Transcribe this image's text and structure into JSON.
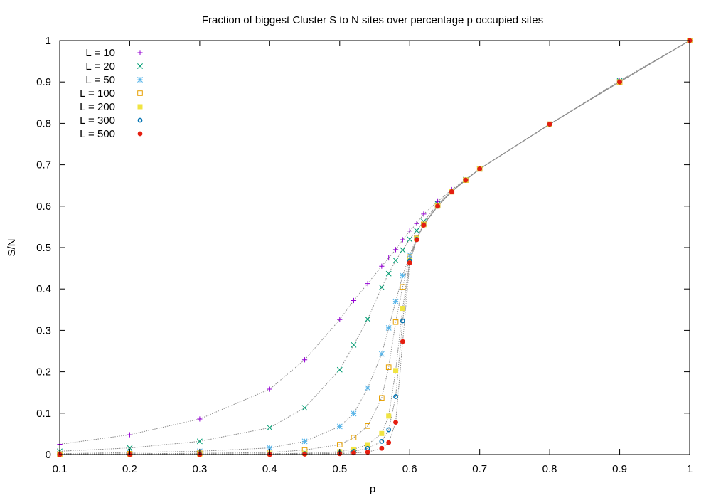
{
  "chart_data": {
    "type": "scatter",
    "title": "Fraction of biggest Cluster S to N sites over percentage p occupied sites",
    "xlabel": "p",
    "ylabel": "S/N",
    "xlim": [
      0.1,
      1
    ],
    "ylim": [
      0,
      1
    ],
    "x_ticks": [
      "0.1",
      "0.2",
      "0.3",
      "0.4",
      "0.5",
      "0.6",
      "0.7",
      "0.8",
      "0.9",
      "1"
    ],
    "y_ticks": [
      "0",
      "0.1",
      "0.2",
      "0.3",
      "0.4",
      "0.5",
      "0.6",
      "0.7",
      "0.8",
      "0.9",
      "1"
    ],
    "grid": false,
    "legend_position": "top-left",
    "lines": "dotted gray connecting points of each series",
    "series": [
      {
        "name": "L = 10",
        "marker": "plus",
        "color": "#9400d3",
        "points": [
          [
            0.1,
            0.025
          ],
          [
            0.2,
            0.048
          ],
          [
            0.3,
            0.086
          ],
          [
            0.4,
            0.158
          ],
          [
            0.45,
            0.229
          ],
          [
            0.5,
            0.326
          ],
          [
            0.52,
            0.372
          ],
          [
            0.54,
            0.413
          ],
          [
            0.56,
            0.455
          ],
          [
            0.57,
            0.475
          ],
          [
            0.58,
            0.495
          ],
          [
            0.59,
            0.519
          ],
          [
            0.6,
            0.54
          ],
          [
            0.61,
            0.558
          ],
          [
            0.62,
            0.581
          ],
          [
            0.64,
            0.611
          ],
          [
            0.66,
            0.64
          ],
          [
            0.68,
            0.664
          ],
          [
            0.7,
            0.69
          ],
          [
            0.8,
            0.797
          ],
          [
            0.9,
            0.902
          ],
          [
            1,
            1
          ]
        ]
      },
      {
        "name": "L = 20",
        "marker": "cross",
        "color": "#009e73",
        "points": [
          [
            0.1,
            0.008
          ],
          [
            0.2,
            0.016
          ],
          [
            0.3,
            0.032
          ],
          [
            0.4,
            0.065
          ],
          [
            0.45,
            0.113
          ],
          [
            0.5,
            0.205
          ],
          [
            0.52,
            0.265
          ],
          [
            0.54,
            0.327
          ],
          [
            0.56,
            0.404
          ],
          [
            0.57,
            0.437
          ],
          [
            0.58,
            0.469
          ],
          [
            0.59,
            0.494
          ],
          [
            0.6,
            0.52
          ],
          [
            0.61,
            0.541
          ],
          [
            0.62,
            0.563
          ],
          [
            0.64,
            0.605
          ],
          [
            0.66,
            0.636
          ],
          [
            0.68,
            0.664
          ],
          [
            0.7,
            0.69
          ],
          [
            0.8,
            0.798
          ],
          [
            0.9,
            0.903
          ],
          [
            1,
            1
          ]
        ]
      },
      {
        "name": "L = 50",
        "marker": "star",
        "color": "#56b4e9",
        "points": [
          [
            0.1,
            0.002
          ],
          [
            0.2,
            0.005
          ],
          [
            0.3,
            0.008
          ],
          [
            0.4,
            0.016
          ],
          [
            0.45,
            0.032
          ],
          [
            0.5,
            0.068
          ],
          [
            0.52,
            0.099
          ],
          [
            0.54,
            0.161
          ],
          [
            0.56,
            0.243
          ],
          [
            0.57,
            0.306
          ],
          [
            0.58,
            0.37
          ],
          [
            0.59,
            0.432
          ],
          [
            0.6,
            0.482
          ],
          [
            0.61,
            0.523
          ],
          [
            0.62,
            0.556
          ],
          [
            0.64,
            0.602
          ],
          [
            0.66,
            0.636
          ],
          [
            0.68,
            0.664
          ],
          [
            0.7,
            0.69
          ],
          [
            0.8,
            0.798
          ],
          [
            0.9,
            0.901
          ],
          [
            1,
            1
          ]
        ]
      },
      {
        "name": "L = 100",
        "marker": "open-square",
        "color": "#e69f00",
        "points": [
          [
            0.1,
            0.001
          ],
          [
            0.2,
            0.002
          ],
          [
            0.3,
            0.003
          ],
          [
            0.4,
            0.005
          ],
          [
            0.45,
            0.011
          ],
          [
            0.5,
            0.024
          ],
          [
            0.52,
            0.041
          ],
          [
            0.54,
            0.069
          ],
          [
            0.56,
            0.137
          ],
          [
            0.57,
            0.211
          ],
          [
            0.58,
            0.32
          ],
          [
            0.59,
            0.405
          ],
          [
            0.6,
            0.477
          ],
          [
            0.61,
            0.522
          ],
          [
            0.62,
            0.556
          ],
          [
            0.64,
            0.601
          ],
          [
            0.66,
            0.635
          ],
          [
            0.68,
            0.663
          ],
          [
            0.7,
            0.69
          ],
          [
            0.8,
            0.798
          ],
          [
            0.9,
            0.9
          ],
          [
            1,
            1
          ]
        ]
      },
      {
        "name": "L = 200",
        "marker": "filled-square",
        "color": "#f0e442",
        "points": [
          [
            0.1,
            0.0
          ],
          [
            0.2,
            0.001
          ],
          [
            0.3,
            0.001
          ],
          [
            0.4,
            0.002
          ],
          [
            0.45,
            0.003
          ],
          [
            0.5,
            0.007
          ],
          [
            0.52,
            0.013
          ],
          [
            0.54,
            0.024
          ],
          [
            0.56,
            0.051
          ],
          [
            0.57,
            0.093
          ],
          [
            0.58,
            0.203
          ],
          [
            0.59,
            0.353
          ],
          [
            0.6,
            0.47
          ],
          [
            0.61,
            0.521
          ],
          [
            0.62,
            0.555
          ],
          [
            0.64,
            0.6
          ],
          [
            0.66,
            0.635
          ],
          [
            0.68,
            0.663
          ],
          [
            0.7,
            0.69
          ],
          [
            0.8,
            0.798
          ],
          [
            0.9,
            0.9
          ],
          [
            1,
            1
          ]
        ]
      },
      {
        "name": "L = 300",
        "marker": "open-circle",
        "color": "#0072b2",
        "points": [
          [
            0.1,
            0.0
          ],
          [
            0.2,
            0.0
          ],
          [
            0.3,
            0.001
          ],
          [
            0.4,
            0.001
          ],
          [
            0.45,
            0.002
          ],
          [
            0.5,
            0.004
          ],
          [
            0.52,
            0.008
          ],
          [
            0.54,
            0.015
          ],
          [
            0.56,
            0.032
          ],
          [
            0.57,
            0.06
          ],
          [
            0.58,
            0.14
          ],
          [
            0.59,
            0.323
          ],
          [
            0.6,
            0.468
          ],
          [
            0.61,
            0.52
          ],
          [
            0.62,
            0.555
          ],
          [
            0.64,
            0.6
          ],
          [
            0.66,
            0.635
          ],
          [
            0.68,
            0.663
          ],
          [
            0.7,
            0.69
          ],
          [
            0.8,
            0.798
          ],
          [
            0.9,
            0.9
          ],
          [
            1,
            1
          ]
        ]
      },
      {
        "name": "L = 500",
        "marker": "filled-circle",
        "color": "#e51e10",
        "points": [
          [
            0.1,
            0.0
          ],
          [
            0.2,
            0.0
          ],
          [
            0.3,
            0.0
          ],
          [
            0.4,
            0.0
          ],
          [
            0.45,
            0.001
          ],
          [
            0.5,
            0.002
          ],
          [
            0.52,
            0.004
          ],
          [
            0.54,
            0.006
          ],
          [
            0.56,
            0.015
          ],
          [
            0.57,
            0.029
          ],
          [
            0.58,
            0.078
          ],
          [
            0.59,
            0.273
          ],
          [
            0.6,
            0.463
          ],
          [
            0.61,
            0.519
          ],
          [
            0.62,
            0.554
          ],
          [
            0.64,
            0.6
          ],
          [
            0.66,
            0.635
          ],
          [
            0.68,
            0.663
          ],
          [
            0.7,
            0.69
          ],
          [
            0.8,
            0.798
          ],
          [
            0.9,
            0.9
          ],
          [
            1,
            1
          ]
        ]
      }
    ]
  }
}
